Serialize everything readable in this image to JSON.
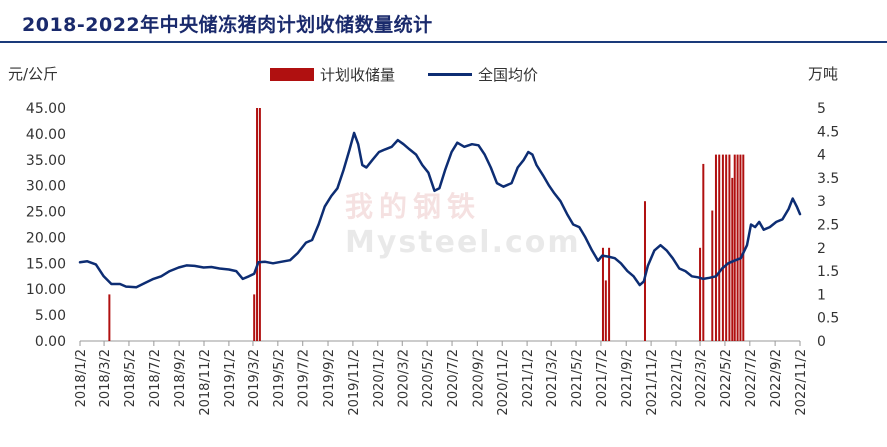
{
  "chart_data": {
    "type": "bar+line",
    "title": "2018-2022年中央储冻猪肉计划收储数量统计",
    "ylabel_left": "元/公斤",
    "ylabel_right": "万吨",
    "ylim_left": [
      0,
      45
    ],
    "ylim_right": [
      0,
      5
    ],
    "yticks_left": [
      "0.00",
      "5.00",
      "10.00",
      "15.00",
      "20.00",
      "25.00",
      "30.00",
      "35.00",
      "40.00",
      "45.00"
    ],
    "yticks_right": [
      "0",
      "0.5",
      "1",
      "1.5",
      "2",
      "2.5",
      "3",
      "3.5",
      "4",
      "4.5",
      "5"
    ],
    "x_start": "2018-01-02",
    "x_end": "2022-11-02",
    "xticks": [
      "2018/1/2",
      "2018/3/2",
      "2018/5/2",
      "2018/7/2",
      "2018/9/2",
      "2018/11/2",
      "2019/1/2",
      "2019/3/2",
      "2019/5/2",
      "2019/7/2",
      "2019/9/2",
      "2019/11/2",
      "2020/1/2",
      "2020/3/2",
      "2020/5/2",
      "2020/7/2",
      "2020/9/2",
      "2020/11/2",
      "2021/1/2",
      "2021/3/2",
      "2021/5/2",
      "2021/7/2",
      "2021/9/2",
      "2021/11/2",
      "2022/1/2",
      "2022/3/2",
      "2022/5/2",
      "2022/7/2",
      "2022/9/2",
      "2022/11/2"
    ],
    "series": [
      {
        "name": "计划收储量",
        "type": "bar",
        "axis": "right",
        "color": "#b01010",
        "points": [
          [
            "2018-03-15",
            1.0
          ],
          [
            "2019-03-05",
            1.0
          ],
          [
            "2019-03-12",
            5.0
          ],
          [
            "2019-03-19",
            5.0
          ],
          [
            "2021-07-07",
            2.0
          ],
          [
            "2021-07-14",
            1.3
          ],
          [
            "2021-07-22",
            2.0
          ],
          [
            "2021-10-18",
            3.0
          ],
          [
            "2022-03-02",
            2.0
          ],
          [
            "2022-03-10",
            3.8
          ],
          [
            "2022-04-01",
            2.8
          ],
          [
            "2022-04-10",
            4.0
          ],
          [
            "2022-04-18",
            4.0
          ],
          [
            "2022-04-27",
            4.0
          ],
          [
            "2022-05-05",
            4.0
          ],
          [
            "2022-05-13",
            4.0
          ],
          [
            "2022-05-20",
            3.5
          ],
          [
            "2022-05-26",
            4.0
          ],
          [
            "2022-06-02",
            4.0
          ],
          [
            "2022-06-09",
            4.0
          ],
          [
            "2022-06-16",
            4.0
          ]
        ]
      },
      {
        "name": "全国均价",
        "type": "line",
        "axis": "left",
        "color": "#0d2d73",
        "points": [
          [
            "2018-01-02",
            15.2
          ],
          [
            "2018-01-20",
            15.4
          ],
          [
            "2018-02-10",
            14.8
          ],
          [
            "2018-03-01",
            12.5
          ],
          [
            "2018-03-20",
            11.0
          ],
          [
            "2018-04-10",
            11.0
          ],
          [
            "2018-04-25",
            10.5
          ],
          [
            "2018-05-20",
            10.4
          ],
          [
            "2018-06-10",
            11.2
          ],
          [
            "2018-07-01",
            12.0
          ],
          [
            "2018-07-20",
            12.5
          ],
          [
            "2018-08-10",
            13.5
          ],
          [
            "2018-09-01",
            14.2
          ],
          [
            "2018-09-20",
            14.6
          ],
          [
            "2018-10-10",
            14.5
          ],
          [
            "2018-11-01",
            14.2
          ],
          [
            "2018-11-20",
            14.3
          ],
          [
            "2018-12-10",
            14.0
          ],
          [
            "2019-01-02",
            13.8
          ],
          [
            "2019-01-20",
            13.5
          ],
          [
            "2019-02-05",
            12.0
          ],
          [
            "2019-02-20",
            12.5
          ],
          [
            "2019-03-05",
            13.0
          ],
          [
            "2019-03-15",
            15.2
          ],
          [
            "2019-04-01",
            15.3
          ],
          [
            "2019-04-20",
            15.0
          ],
          [
            "2019-05-10",
            15.3
          ],
          [
            "2019-06-01",
            15.6
          ],
          [
            "2019-06-20",
            17.0
          ],
          [
            "2019-07-10",
            19.0
          ],
          [
            "2019-07-25",
            19.5
          ],
          [
            "2019-08-10",
            22.5
          ],
          [
            "2019-08-25",
            26.0
          ],
          [
            "2019-09-10",
            28.0
          ],
          [
            "2019-09-25",
            29.5
          ],
          [
            "2019-10-10",
            33.0
          ],
          [
            "2019-10-25",
            37.0
          ],
          [
            "2019-11-05",
            40.2
          ],
          [
            "2019-11-15",
            38.0
          ],
          [
            "2019-11-25",
            34.0
          ],
          [
            "2019-12-05",
            33.5
          ],
          [
            "2019-12-20",
            35.0
          ],
          [
            "2020-01-05",
            36.5
          ],
          [
            "2020-01-20",
            37.0
          ],
          [
            "2020-02-05",
            37.5
          ],
          [
            "2020-02-20",
            38.8
          ],
          [
            "2020-03-05",
            38.0
          ],
          [
            "2020-03-20",
            37.0
          ],
          [
            "2020-04-05",
            36.0
          ],
          [
            "2020-04-20",
            34.0
          ],
          [
            "2020-05-05",
            32.5
          ],
          [
            "2020-05-20",
            29.0
          ],
          [
            "2020-06-01",
            29.5
          ],
          [
            "2020-06-15",
            33.0
          ],
          [
            "2020-07-01",
            36.5
          ],
          [
            "2020-07-15",
            38.3
          ],
          [
            "2020-08-01",
            37.5
          ],
          [
            "2020-08-20",
            38.0
          ],
          [
            "2020-09-05",
            37.8
          ],
          [
            "2020-09-20",
            36.0
          ],
          [
            "2020-10-05",
            33.5
          ],
          [
            "2020-10-20",
            30.5
          ],
          [
            "2020-11-05",
            29.8
          ],
          [
            "2020-11-25",
            30.5
          ],
          [
            "2020-12-10",
            33.5
          ],
          [
            "2020-12-25",
            35.0
          ],
          [
            "2021-01-05",
            36.5
          ],
          [
            "2021-01-15",
            36.0
          ],
          [
            "2021-01-25",
            34.0
          ],
          [
            "2021-02-10",
            32.0
          ],
          [
            "2021-02-25",
            30.0
          ],
          [
            "2021-03-10",
            28.5
          ],
          [
            "2021-03-25",
            27.0
          ],
          [
            "2021-04-10",
            24.5
          ],
          [
            "2021-04-25",
            22.5
          ],
          [
            "2021-05-10",
            22.0
          ],
          [
            "2021-05-25",
            20.0
          ],
          [
            "2021-06-10",
            17.5
          ],
          [
            "2021-06-25",
            15.5
          ],
          [
            "2021-07-05",
            16.5
          ],
          [
            "2021-07-20",
            16.3
          ],
          [
            "2021-08-05",
            16.0
          ],
          [
            "2021-08-20",
            15.0
          ],
          [
            "2021-09-05",
            13.5
          ],
          [
            "2021-09-20",
            12.5
          ],
          [
            "2021-10-05",
            10.8
          ],
          [
            "2021-10-15",
            11.5
          ],
          [
            "2021-10-25",
            14.5
          ],
          [
            "2021-11-10",
            17.5
          ],
          [
            "2021-11-25",
            18.5
          ],
          [
            "2021-12-10",
            17.5
          ],
          [
            "2021-12-25",
            16.0
          ],
          [
            "2022-01-10",
            14.0
          ],
          [
            "2022-01-25",
            13.5
          ],
          [
            "2022-02-10",
            12.5
          ],
          [
            "2022-02-25",
            12.3
          ],
          [
            "2022-03-10",
            12.0
          ],
          [
            "2022-03-25",
            12.2
          ],
          [
            "2022-04-10",
            12.5
          ],
          [
            "2022-04-25",
            14.0
          ],
          [
            "2022-05-10",
            15.0
          ],
          [
            "2022-05-25",
            15.5
          ],
          [
            "2022-06-10",
            16.0
          ],
          [
            "2022-06-25",
            18.5
          ],
          [
            "2022-07-05",
            22.5
          ],
          [
            "2022-07-15",
            22.0
          ],
          [
            "2022-07-25",
            23.0
          ],
          [
            "2022-08-05",
            21.5
          ],
          [
            "2022-08-20",
            22.0
          ],
          [
            "2022-09-05",
            23.0
          ],
          [
            "2022-09-20",
            23.5
          ],
          [
            "2022-10-05",
            25.5
          ],
          [
            "2022-10-15",
            27.5
          ],
          [
            "2022-10-25",
            26.0
          ],
          [
            "2022-11-02",
            24.5
          ]
        ]
      }
    ],
    "legend": [
      "计划收储量",
      "全国均价"
    ],
    "legend_position": "top-center",
    "grid": false
  },
  "watermark": {
    "top": "我的",
    "middle": "钢铁",
    "bottom": "Mysteel.com"
  }
}
